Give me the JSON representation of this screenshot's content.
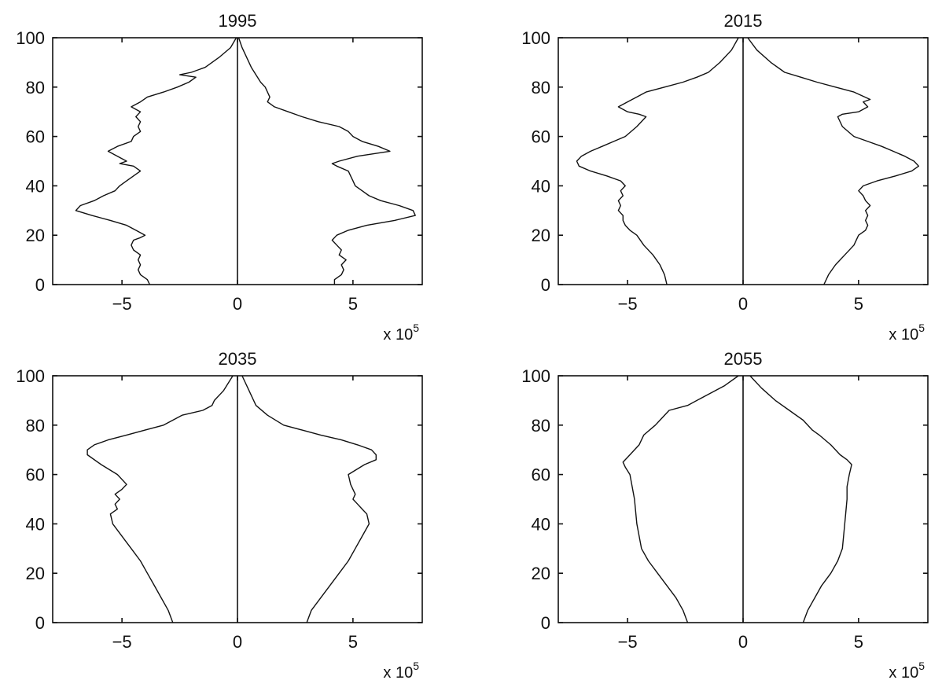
{
  "figure": {
    "layout": "2x2 grid of small multiples",
    "line_color": "#111111",
    "background": "#ffffff"
  },
  "chart_data": [
    {
      "type": "line",
      "title": "1995",
      "xlabel": "",
      "ylabel": "",
      "xlim": [
        -8,
        8
      ],
      "ylim": [
        0,
        100
      ],
      "xticks": [
        -5,
        0,
        5
      ],
      "yticks": [
        0,
        20,
        40,
        60,
        80,
        100
      ],
      "xtick_labels": [
        "−5",
        "0",
        "5"
      ],
      "ytick_labels": [
        "0",
        "20",
        "40",
        "60",
        "80",
        "100"
      ],
      "x_scale_label": "x 10",
      "x_scale_exponent": "5",
      "grid": false,
      "series": [
        {
          "side": "left",
          "x": [
            -3.8,
            -3.9,
            -4.2,
            -4.3,
            -4.2,
            -4.3,
            -4.2,
            -4.5,
            -4.6,
            -4.5,
            -4.2,
            -4.0,
            -4.4,
            -4.8,
            -5.5,
            -6.3,
            -7.0,
            -6.8,
            -6.2,
            -5.8,
            -5.3,
            -5.1,
            -4.8,
            -4.5,
            -4.2,
            -4.5,
            -5.1,
            -4.8,
            -5.2,
            -5.6,
            -5.2,
            -4.6,
            -4.5,
            -4.2,
            -4.3,
            -4.2,
            -4.4,
            -4.2,
            -4.6,
            -4.2,
            -3.9,
            -3.2,
            -2.6,
            -2.1,
            -1.8,
            -2.5,
            -2.0,
            -1.4,
            -0.8,
            -0.3,
            -0.05
          ],
          "y": [
            0,
            2,
            4,
            6,
            8,
            10,
            12,
            14,
            16,
            18,
            19,
            20,
            22,
            24,
            26,
            28,
            30,
            32,
            34,
            36,
            38,
            40,
            42,
            44,
            46,
            48,
            49,
            50,
            52,
            54,
            56,
            58,
            60,
            62,
            64,
            66,
            68,
            70,
            72,
            74,
            76,
            78,
            80,
            82,
            84,
            85,
            86,
            88,
            92,
            96,
            100
          ]
        },
        {
          "side": "right",
          "x": [
            4.2,
            4.2,
            4.5,
            4.6,
            4.5,
            4.7,
            4.4,
            4.5,
            4.3,
            4.1,
            4.2,
            4.3,
            4.8,
            5.6,
            6.8,
            7.7,
            7.6,
            7.0,
            6.2,
            5.7,
            5.4,
            5.1,
            5.0,
            4.9,
            4.8,
            4.3,
            4.1,
            4.4,
            5.2,
            6.6,
            6.1,
            5.4,
            5.0,
            4.8,
            4.4,
            3.5,
            2.8,
            2.2,
            1.6,
            1.3,
            1.4,
            1.2,
            1.0,
            0.6,
            0.2,
            0.05
          ],
          "y": [
            0,
            2,
            4,
            6,
            8,
            10,
            12,
            14,
            16,
            18,
            19,
            20,
            22,
            24,
            26,
            28,
            30,
            32,
            34,
            36,
            38,
            40,
            42,
            44,
            46,
            48,
            49,
            50,
            52,
            54,
            56,
            58,
            60,
            62,
            64,
            66,
            68,
            70,
            72,
            74,
            76,
            80,
            82,
            88,
            96,
            100
          ]
        }
      ]
    },
    {
      "type": "line",
      "title": "2015",
      "xlabel": "",
      "ylabel": "",
      "xlim": [
        -8,
        8
      ],
      "ylim": [
        0,
        100
      ],
      "xticks": [
        -5,
        0,
        5
      ],
      "yticks": [
        0,
        20,
        40,
        60,
        80,
        100
      ],
      "xtick_labels": [
        "−5",
        "0",
        "5"
      ],
      "ytick_labels": [
        "0",
        "20",
        "40",
        "60",
        "80",
        "100"
      ],
      "x_scale_label": "x 10",
      "x_scale_exponent": "5",
      "grid": false,
      "series": [
        {
          "side": "left",
          "x": [
            -3.3,
            -3.4,
            -3.6,
            -3.9,
            -4.3,
            -4.6,
            -4.9,
            -5.1,
            -5.2,
            -5.2,
            -5.4,
            -5.3,
            -5.4,
            -5.2,
            -5.3,
            -5.1,
            -5.3,
            -5.9,
            -6.6,
            -7.1,
            -7.2,
            -7.0,
            -6.6,
            -6.1,
            -5.6,
            -5.1,
            -4.6,
            -4.2,
            -4.5,
            -5.0,
            -5.4,
            -5.0,
            -4.6,
            -4.2,
            -3.4,
            -2.6,
            -2.0,
            -1.5,
            -1.0,
            -0.5,
            -0.2
          ],
          "y": [
            0,
            4,
            8,
            12,
            16,
            20,
            22,
            24,
            26,
            28,
            30,
            32,
            34,
            36,
            38,
            40,
            42,
            44,
            46,
            48,
            50,
            52,
            54,
            56,
            58,
            60,
            64,
            68,
            69,
            70,
            72,
            74,
            76,
            78,
            80,
            82,
            84,
            86,
            90,
            95,
            100
          ]
        },
        {
          "side": "right",
          "x": [
            3.5,
            3.7,
            4.0,
            4.4,
            4.8,
            5.0,
            5.3,
            5.4,
            5.3,
            5.4,
            5.3,
            5.5,
            5.3,
            5.2,
            5.0,
            5.2,
            5.8,
            6.6,
            7.3,
            7.6,
            7.4,
            7.0,
            6.5,
            6.0,
            5.4,
            4.8,
            4.3,
            4.1,
            4.3,
            5.0,
            5.4,
            5.2,
            5.5,
            4.8,
            4.0,
            3.2,
            2.5,
            1.8,
            1.2,
            0.6,
            0.2
          ],
          "y": [
            0,
            4,
            8,
            12,
            16,
            20,
            22,
            24,
            26,
            28,
            30,
            32,
            34,
            36,
            38,
            40,
            42,
            44,
            46,
            48,
            50,
            52,
            54,
            56,
            58,
            60,
            64,
            68,
            69,
            70,
            72,
            74,
            75,
            78,
            80,
            82,
            84,
            86,
            90,
            95,
            100
          ]
        }
      ]
    },
    {
      "type": "line",
      "title": "2035",
      "xlabel": "",
      "ylabel": "",
      "xlim": [
        -8,
        8
      ],
      "ylim": [
        0,
        100
      ],
      "xticks": [
        -5,
        0,
        5
      ],
      "yticks": [
        0,
        20,
        40,
        60,
        80,
        100
      ],
      "xtick_labels": [
        "−5",
        "0",
        "5"
      ],
      "ytick_labels": [
        "0",
        "20",
        "40",
        "60",
        "80",
        "100"
      ],
      "x_scale_label": "x 10",
      "x_scale_exponent": "5",
      "grid": false,
      "series": [
        {
          "side": "left",
          "x": [
            -2.8,
            -3.0,
            -3.3,
            -3.6,
            -3.9,
            -4.2,
            -4.6,
            -5.0,
            -5.4,
            -5.5,
            -5.2,
            -5.3,
            -5.1,
            -5.3,
            -5.0,
            -4.8,
            -5.2,
            -5.9,
            -6.5,
            -6.5,
            -6.2,
            -5.6,
            -4.8,
            -4.0,
            -3.2,
            -2.4,
            -1.5,
            -1.1,
            -1.0,
            -0.6,
            -0.2
          ],
          "y": [
            0,
            5,
            10,
            15,
            20,
            25,
            30,
            35,
            40,
            44,
            46,
            48,
            50,
            52,
            54,
            56,
            60,
            64,
            68,
            70,
            72,
            74,
            76,
            78,
            80,
            84,
            86,
            88,
            90,
            94,
            100
          ]
        },
        {
          "side": "right",
          "x": [
            3.0,
            3.2,
            3.6,
            4.0,
            4.4,
            4.8,
            5.1,
            5.4,
            5.7,
            5.6,
            5.4,
            5.2,
            5.0,
            5.1,
            4.9,
            4.8,
            5.5,
            6.0,
            6.0,
            5.8,
            5.2,
            4.5,
            3.6,
            2.8,
            2.0,
            1.3,
            0.8,
            0.5,
            0.2
          ],
          "y": [
            0,
            5,
            10,
            15,
            20,
            25,
            30,
            35,
            40,
            44,
            46,
            48,
            50,
            52,
            56,
            60,
            64,
            66,
            68,
            70,
            72,
            74,
            76,
            78,
            80,
            84,
            88,
            94,
            100
          ]
        }
      ]
    },
    {
      "type": "line",
      "title": "2055",
      "xlabel": "",
      "ylabel": "",
      "xlim": [
        -8,
        8
      ],
      "ylim": [
        0,
        100
      ],
      "xticks": [
        -5,
        0,
        5
      ],
      "yticks": [
        0,
        20,
        40,
        60,
        80,
        100
      ],
      "xtick_labels": [
        "−5",
        "0",
        "5"
      ],
      "ytick_labels": [
        "0",
        "20",
        "40",
        "60",
        "80",
        "100"
      ],
      "x_scale_label": "x 10",
      "x_scale_exponent": "5",
      "grid": false,
      "series": [
        {
          "side": "left",
          "x": [
            -2.4,
            -2.6,
            -2.9,
            -3.3,
            -3.7,
            -4.1,
            -4.4,
            -4.6,
            -4.7,
            -4.8,
            -4.9,
            -5.1,
            -5.2,
            -4.9,
            -4.5,
            -4.3,
            -3.8,
            -3.6,
            -3.2,
            -2.4,
            -1.6,
            -0.8,
            -0.2
          ],
          "y": [
            0,
            5,
            10,
            15,
            20,
            25,
            30,
            40,
            50,
            55,
            60,
            63,
            65,
            68,
            72,
            76,
            80,
            82,
            86,
            88,
            92,
            96,
            100
          ]
        },
        {
          "side": "right",
          "x": [
            2.6,
            2.8,
            3.1,
            3.4,
            3.8,
            4.1,
            4.3,
            4.4,
            4.5,
            4.5,
            4.6,
            4.7,
            4.5,
            4.2,
            3.8,
            3.3,
            3.0,
            2.6,
            2.0,
            1.4,
            0.8,
            0.3
          ],
          "y": [
            0,
            5,
            10,
            15,
            20,
            25,
            30,
            40,
            50,
            55,
            60,
            64,
            66,
            68,
            72,
            76,
            78,
            82,
            86,
            90,
            95,
            100
          ]
        }
      ]
    }
  ]
}
